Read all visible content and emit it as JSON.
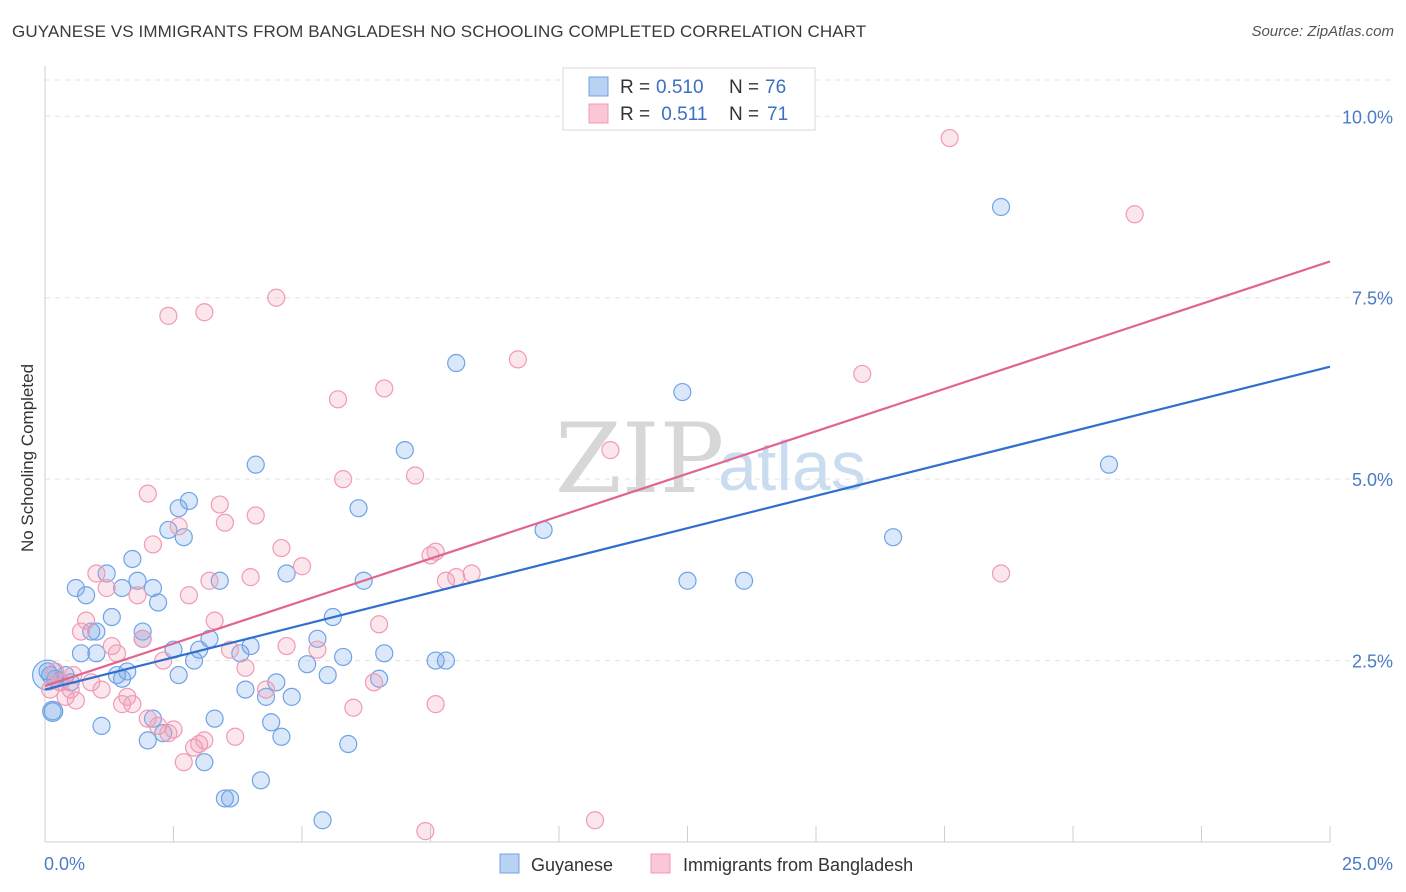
{
  "title": "GUYANESE VS IMMIGRANTS FROM BANGLADESH NO SCHOOLING COMPLETED CORRELATION CHART",
  "source": "Source: ZipAtlas.com",
  "watermark": {
    "zip": "ZIP",
    "atlas": "atlas"
  },
  "colors": {
    "blue": "#6fa3e6",
    "blue_line": "#2e6fd0",
    "pink": "#f19ab5",
    "pink_line": "#e06590",
    "axis_text": "#4a7cc7"
  },
  "legend": {
    "rows": [
      {
        "r_label": "R = ",
        "r_value": "0.510",
        "n_label": "N = ",
        "n_value": "76"
      },
      {
        "r_label": "R = ",
        "r_value": " 0.511",
        "n_label": "N = ",
        "n_value": "71"
      }
    ]
  },
  "chart_data": {
    "type": "scatter",
    "title": "GUYANESE VS IMMIGRANTS FROM BANGLADESH NO SCHOOLING COMPLETED CORRELATION CHART",
    "xlabel": "",
    "ylabel": "No Schooling Completed",
    "xlim": [
      0,
      25
    ],
    "ylim": [
      0,
      10.5
    ],
    "x_tick_labels": [
      "0.0%",
      "25.0%"
    ],
    "y_ticks": [
      2.5,
      5.0,
      7.5,
      10.0
    ],
    "y_tick_labels": [
      "2.5%",
      "5.0%",
      "7.5%",
      "10.0%"
    ],
    "grid": true,
    "legend_position": "top-center",
    "series": [
      {
        "name": "Guyanese",
        "color": "#6fa3e6",
        "trend": {
          "x": [
            0,
            25
          ],
          "y": [
            2.1,
            6.55
          ]
        },
        "points": [
          [
            0.1,
            2.3
          ],
          [
            0.15,
            1.8
          ],
          [
            0.2,
            2.25
          ],
          [
            0.3,
            2.2
          ],
          [
            0.4,
            2.3
          ],
          [
            0.5,
            2.2
          ],
          [
            0.6,
            3.5
          ],
          [
            0.7,
            2.6
          ],
          [
            0.8,
            3.4
          ],
          [
            0.9,
            2.9
          ],
          [
            1.0,
            2.6
          ],
          [
            1.0,
            2.9
          ],
          [
            1.1,
            1.6
          ],
          [
            1.2,
            3.7
          ],
          [
            1.3,
            3.1
          ],
          [
            1.4,
            2.3
          ],
          [
            1.5,
            3.5
          ],
          [
            1.5,
            2.25
          ],
          [
            1.6,
            2.35
          ],
          [
            1.7,
            3.9
          ],
          [
            1.8,
            3.6
          ],
          [
            1.9,
            2.9
          ],
          [
            1.9,
            2.8
          ],
          [
            2.0,
            1.4
          ],
          [
            2.1,
            3.5
          ],
          [
            2.1,
            1.7
          ],
          [
            2.2,
            3.3
          ],
          [
            2.3,
            1.5
          ],
          [
            2.4,
            4.3
          ],
          [
            2.5,
            2.65
          ],
          [
            2.6,
            2.3
          ],
          [
            2.6,
            4.6
          ],
          [
            2.7,
            4.2
          ],
          [
            2.8,
            4.7
          ],
          [
            2.9,
            2.5
          ],
          [
            3.0,
            2.65
          ],
          [
            3.1,
            1.1
          ],
          [
            3.2,
            2.8
          ],
          [
            3.3,
            1.7
          ],
          [
            3.4,
            3.6
          ],
          [
            3.5,
            0.6
          ],
          [
            3.6,
            0.6
          ],
          [
            3.8,
            2.6
          ],
          [
            3.9,
            2.1
          ],
          [
            4.0,
            2.7
          ],
          [
            4.1,
            5.2
          ],
          [
            4.2,
            0.85
          ],
          [
            4.3,
            2.0
          ],
          [
            4.4,
            1.65
          ],
          [
            4.5,
            2.2
          ],
          [
            4.6,
            1.45
          ],
          [
            4.7,
            3.7
          ],
          [
            4.8,
            2.0
          ],
          [
            5.4,
            0.3
          ],
          [
            5.3,
            2.8
          ],
          [
            5.1,
            2.45
          ],
          [
            5.5,
            2.3
          ],
          [
            5.6,
            3.1
          ],
          [
            5.8,
            2.55
          ],
          [
            5.9,
            1.35
          ],
          [
            6.1,
            4.6
          ],
          [
            6.2,
            3.6
          ],
          [
            6.5,
            2.25
          ],
          [
            6.6,
            2.6
          ],
          [
            7.0,
            5.4
          ],
          [
            7.6,
            2.5
          ],
          [
            7.8,
            2.5
          ],
          [
            8.0,
            6.6
          ],
          [
            9.7,
            4.3
          ],
          [
            12.4,
            6.2
          ],
          [
            12.5,
            3.6
          ],
          [
            13.6,
            3.6
          ],
          [
            16.5,
            4.2
          ],
          [
            18.6,
            8.75
          ],
          [
            20.7,
            5.2
          ],
          [
            0.05,
            2.35
          ]
        ]
      },
      {
        "name": "Immigrants from Bangladesh",
        "color": "#f19ab5",
        "trend": {
          "x": [
            0,
            25
          ],
          "y": [
            2.15,
            8.0
          ]
        },
        "points": [
          [
            0.1,
            2.1
          ],
          [
            0.2,
            2.35
          ],
          [
            0.3,
            2.2
          ],
          [
            0.4,
            2.0
          ],
          [
            0.5,
            2.1
          ],
          [
            0.55,
            2.3
          ],
          [
            0.6,
            1.95
          ],
          [
            0.7,
            2.9
          ],
          [
            0.8,
            3.05
          ],
          [
            0.9,
            2.2
          ],
          [
            1.0,
            3.7
          ],
          [
            1.1,
            2.1
          ],
          [
            1.2,
            3.5
          ],
          [
            1.3,
            2.7
          ],
          [
            1.4,
            2.6
          ],
          [
            1.5,
            1.9
          ],
          [
            1.6,
            2.0
          ],
          [
            1.7,
            1.9
          ],
          [
            1.8,
            3.4
          ],
          [
            1.9,
            2.8
          ],
          [
            2.0,
            1.7
          ],
          [
            2.0,
            4.8
          ],
          [
            2.1,
            4.1
          ],
          [
            2.2,
            1.6
          ],
          [
            2.3,
            2.5
          ],
          [
            2.4,
            1.5
          ],
          [
            2.5,
            1.55
          ],
          [
            2.6,
            4.35
          ],
          [
            2.7,
            1.1
          ],
          [
            2.8,
            3.4
          ],
          [
            2.9,
            1.3
          ],
          [
            3.0,
            1.35
          ],
          [
            3.1,
            1.4
          ],
          [
            3.2,
            3.6
          ],
          [
            3.3,
            3.05
          ],
          [
            3.4,
            4.65
          ],
          [
            3.5,
            4.4
          ],
          [
            3.6,
            2.65
          ],
          [
            3.7,
            1.45
          ],
          [
            3.9,
            2.4
          ],
          [
            4.0,
            3.65
          ],
          [
            4.1,
            4.5
          ],
          [
            4.3,
            2.1
          ],
          [
            4.5,
            7.5
          ],
          [
            4.6,
            4.05
          ],
          [
            4.7,
            2.7
          ],
          [
            5.0,
            3.8
          ],
          [
            5.3,
            2.65
          ],
          [
            5.7,
            6.1
          ],
          [
            5.8,
            5.0
          ],
          [
            6.0,
            1.85
          ],
          [
            6.4,
            2.2
          ],
          [
            6.5,
            3.0
          ],
          [
            6.6,
            6.25
          ],
          [
            7.2,
            5.05
          ],
          [
            7.4,
            0.15
          ],
          [
            7.5,
            3.95
          ],
          [
            7.6,
            1.9
          ],
          [
            7.8,
            3.6
          ],
          [
            8.0,
            3.65
          ],
          [
            8.3,
            3.7
          ],
          [
            9.2,
            6.65
          ],
          [
            10.7,
            0.3
          ],
          [
            11.0,
            5.4
          ],
          [
            15.9,
            6.45
          ],
          [
            17.6,
            9.7
          ],
          [
            18.6,
            3.7
          ],
          [
            21.2,
            8.65
          ],
          [
            2.4,
            7.25
          ],
          [
            3.1,
            7.3
          ],
          [
            7.6,
            4.0
          ]
        ]
      }
    ]
  },
  "bottom_legend": [
    {
      "label": "Guyanese"
    },
    {
      "label": "Immigrants from Bangladesh"
    }
  ]
}
